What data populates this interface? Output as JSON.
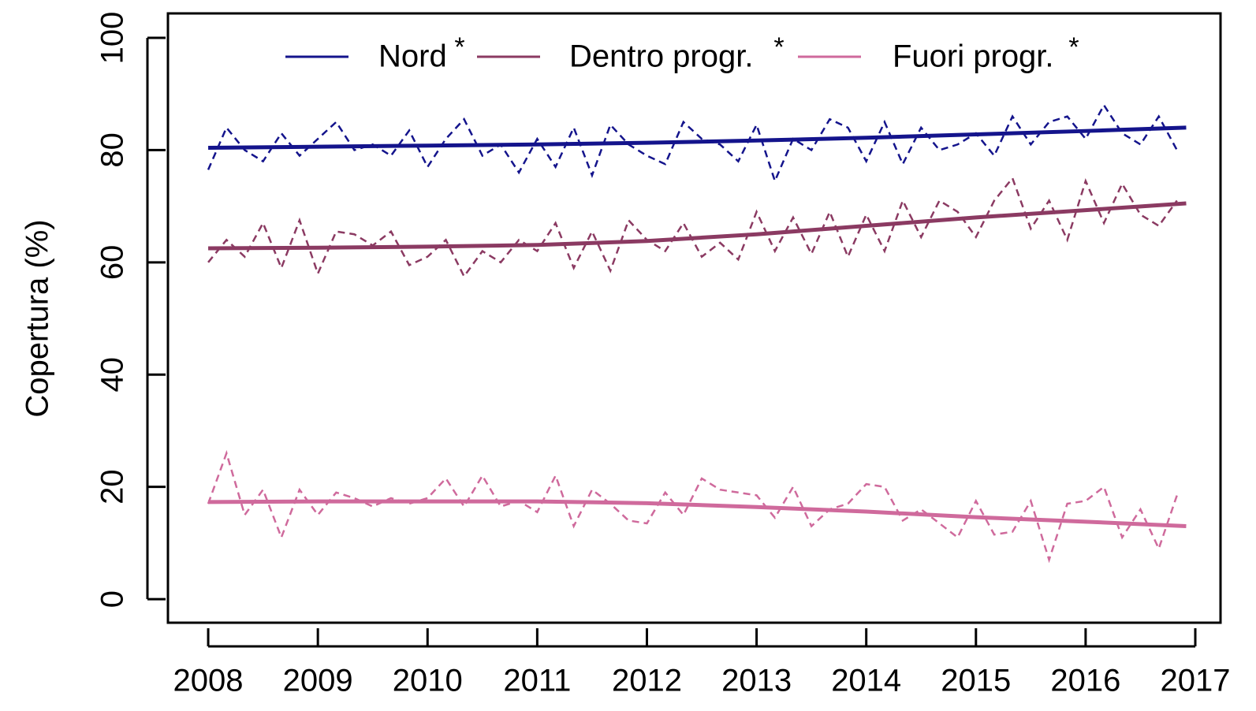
{
  "chart_data": {
    "type": "line",
    "ylabel": "Copertura (%)",
    "significance_marker": "*",
    "x": [
      2008,
      2008.167,
      2008.333,
      2008.5,
      2008.667,
      2008.833,
      2009,
      2009.167,
      2009.333,
      2009.5,
      2009.667,
      2009.833,
      2010,
      2010.167,
      2010.333,
      2010.5,
      2010.667,
      2010.833,
      2011,
      2011.167,
      2011.333,
      2011.5,
      2011.667,
      2011.833,
      2012,
      2012.167,
      2012.333,
      2012.5,
      2012.667,
      2012.833,
      2013,
      2013.167,
      2013.333,
      2013.5,
      2013.667,
      2013.833,
      2014,
      2014.167,
      2014.333,
      2014.5,
      2014.667,
      2014.833,
      2015,
      2015.167,
      2015.333,
      2015.5,
      2015.667,
      2015.833,
      2016,
      2016.167,
      2016.333,
      2016.5,
      2016.667,
      2016.833
    ],
    "trend_x": [
      2008,
      2009,
      2010,
      2011,
      2012,
      2013,
      2014,
      2015,
      2016,
      2016.917
    ],
    "series": [
      {
        "name": "Nord",
        "color": "#14148c",
        "values": [
          76.5,
          84,
          80,
          78,
          83,
          79,
          82,
          85,
          80,
          81,
          79,
          83.5,
          77,
          82,
          85.5,
          79,
          81,
          76,
          82,
          77,
          84,
          75.5,
          84.5,
          81,
          79,
          77.5,
          85,
          82,
          81,
          78,
          84.5,
          74.5,
          82,
          80,
          85.5,
          84,
          78,
          85,
          77.5,
          84,
          80,
          81,
          83,
          79,
          86,
          81,
          85,
          86,
          82,
          88,
          83,
          81,
          86,
          80
        ],
        "trend": [
          80.4,
          80.6,
          80.8,
          81.0,
          81.3,
          81.7,
          82.2,
          82.8,
          83.4,
          84.0
        ]
      },
      {
        "name": "Dentro progr.",
        "color": "#8b3a62",
        "values": [
          60,
          64,
          61,
          67,
          59,
          67.5,
          58,
          65.5,
          65,
          63,
          65.5,
          59.5,
          61,
          64,
          57.5,
          62,
          60,
          64,
          62,
          67,
          59,
          65.5,
          58.5,
          67.5,
          64,
          62,
          67,
          61,
          63.5,
          60.5,
          69,
          62,
          68,
          61.5,
          69,
          61,
          68.5,
          62,
          71,
          64.5,
          71,
          69,
          64.5,
          71,
          75,
          66,
          71,
          64,
          74.5,
          67,
          74,
          68.5,
          66.5,
          71
        ],
        "trend": [
          62.5,
          62.6,
          62.8,
          63.1,
          63.8,
          65.0,
          66.5,
          68.0,
          69.3,
          70.5
        ]
      },
      {
        "name": "Fuori progr.",
        "color": "#cf6a9c",
        "values": [
          17,
          26,
          15,
          19.5,
          11,
          19.5,
          15,
          19,
          18,
          16.5,
          18,
          17,
          18,
          21.5,
          16.5,
          22,
          16.5,
          17.5,
          15.5,
          22,
          13,
          19.5,
          17,
          14,
          13.5,
          19,
          15,
          21.5,
          19.5,
          19,
          18.5,
          14.5,
          20,
          13,
          16,
          17,
          20.5,
          20,
          14,
          16,
          13.5,
          11,
          17.5,
          11.5,
          12,
          17.5,
          7,
          17,
          17.5,
          20,
          11,
          16,
          9,
          18.5
        ],
        "trend": [
          17.3,
          17.4,
          17.4,
          17.4,
          17.1,
          16.4,
          15.6,
          14.6,
          13.8,
          13.0
        ]
      }
    ],
    "xlim": [
      2007.633,
      2017.23
    ],
    "xticks": [
      2008,
      2009,
      2010,
      2011,
      2012,
      2013,
      2014,
      2015,
      2016,
      2017
    ],
    "ylim": [
      -4.2,
      104.35
    ],
    "yticks": [
      0,
      20,
      40,
      60,
      80,
      100
    ],
    "legend": "top"
  }
}
